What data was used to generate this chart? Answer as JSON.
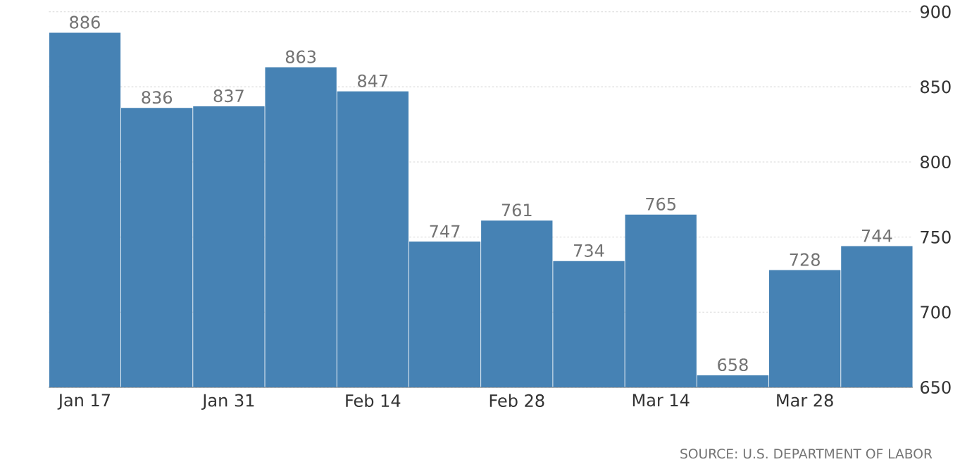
{
  "chart_data": {
    "type": "bar",
    "categories": [
      "Jan 17",
      null,
      "Jan 31",
      null,
      "Feb 14",
      null,
      "Feb 28",
      null,
      "Mar 14",
      null,
      "Mar 28",
      null
    ],
    "values": [
      886,
      836,
      837,
      863,
      847,
      747,
      761,
      734,
      765,
      658,
      728,
      744
    ],
    "color": "#4682b4",
    "ylim": [
      650,
      900
    ],
    "yticks": [
      650,
      700,
      750,
      800,
      850,
      900
    ],
    "grid": "y",
    "data_labels": true,
    "annotations": [
      "SOURCE: U.S. DEPARTMENT OF LABOR"
    ]
  }
}
